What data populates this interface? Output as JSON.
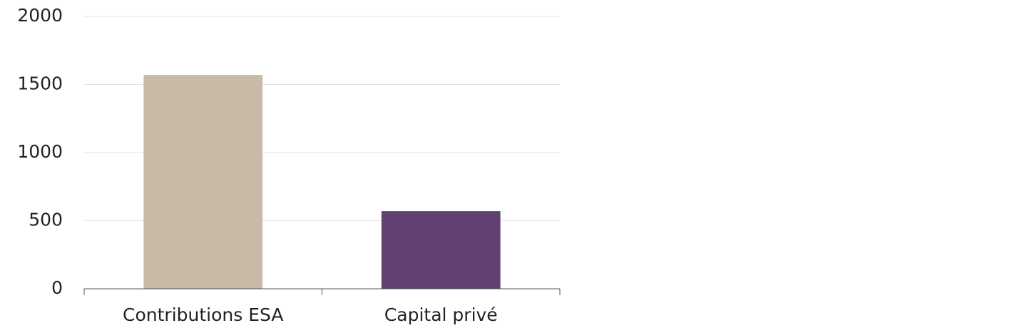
{
  "chart_data": {
    "type": "bar",
    "categories": [
      "Contributions ESA",
      "Capital privé"
    ],
    "values": [
      1570,
      570
    ],
    "colors": [
      "#c9b9a7",
      "#614172"
    ],
    "ylim": [
      0,
      2000
    ],
    "yticks": [
      0,
      500,
      1000,
      1500,
      2000
    ],
    "grid": true
  }
}
